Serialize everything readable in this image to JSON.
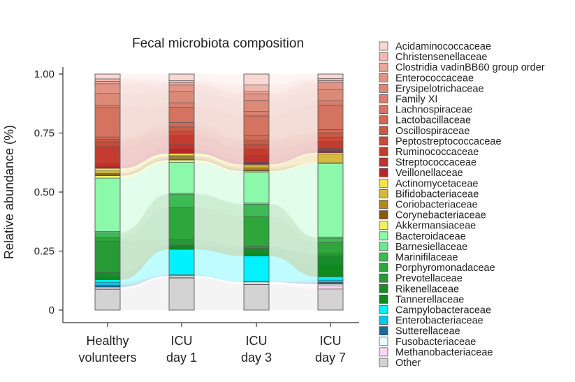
{
  "chart_data": {
    "type": "stacked_bar_alluvial",
    "title": "Fecal microbiota composition",
    "xlabel": "",
    "ylabel": "Relative abundance (%)",
    "ylim": [
      0,
      1
    ],
    "yticks": [
      0,
      0.25,
      0.5,
      0.75,
      1.0
    ],
    "ytick_labels": [
      "0",
      "0.25",
      "0.50",
      "0.75",
      "1.00"
    ],
    "categories": [
      "Healthy\nvolunteers",
      "ICU\nday 1",
      "ICU\nday 3",
      "ICU\nday 7"
    ],
    "legend_position": "right",
    "series": [
      {
        "name": "Other",
        "color": "#d3d3d3",
        "values": [
          0.085,
          0.145,
          0.115,
          0.095
        ]
      },
      {
        "name": "Methanobacteriaceae",
        "color": "#f8d8f4",
        "values": [
          0.005,
          0.002,
          0.002,
          0.015
        ]
      },
      {
        "name": "Fusobacteriaceae",
        "color": "#e6fdfd",
        "values": [
          0.005,
          0.008,
          0.01,
          0.007
        ]
      },
      {
        "name": "Sutterellaceae",
        "color": "#1a6b9a",
        "values": [
          0.008,
          0.0,
          0.0,
          0.008
        ]
      },
      {
        "name": "Enterobacteriaceae",
        "color": "#00c8e6",
        "values": [
          0.012,
          0.005,
          0.003,
          0.01
        ]
      },
      {
        "name": "Campylobacteraceae",
        "color": "#00f2ff",
        "values": [
          0.01,
          0.115,
          0.115,
          0.015
        ]
      },
      {
        "name": "Tannerellaceae",
        "color": "#0e8a1e",
        "values": [
          0.01,
          0.01,
          0.01,
          0.05
        ]
      },
      {
        "name": "Rikenellaceae",
        "color": "#178c2a",
        "values": [
          0.02,
          0.01,
          0.025,
          0.045
        ]
      },
      {
        "name": "Prevotellaceae",
        "color": "#279a36",
        "values": [
          0.13,
          0.025,
          0.01,
          0.01
        ]
      },
      {
        "name": "Porphyromonadaceae",
        "color": "#2ea63c",
        "values": [
          0.015,
          0.145,
          0.135,
          0.05
        ]
      },
      {
        "name": "Marinifilaceae",
        "color": "#3dba54",
        "values": [
          0.02,
          0.06,
          0.055,
          0.02
        ]
      },
      {
        "name": "Barnesiellaceae",
        "color": "#6ee68e",
        "values": [
          0.005,
          0.005,
          0.005,
          0.005
        ]
      },
      {
        "name": "Bacteroidaceae",
        "color": "#8cf8aa",
        "values": [
          0.22,
          0.14,
          0.14,
          0.33
        ]
      },
      {
        "name": "Akkermansiaceae",
        "color": "#f0f060",
        "values": [
          0.01,
          0.01,
          0.005,
          0.005
        ]
      },
      {
        "name": "Corynebacteriaceae",
        "color": "#8a5a0c",
        "values": [
          0.005,
          0.005,
          0.005,
          0.0
        ]
      },
      {
        "name": "Coriobacteriaceae",
        "color": "#b08a1e",
        "values": [
          0.005,
          0.01,
          0.01,
          0.0
        ]
      },
      {
        "name": "Bifidobacteriaceae",
        "color": "#d6b83a",
        "values": [
          0.01,
          0.005,
          0.01,
          0.04
        ]
      },
      {
        "name": "Actinomycetaceae",
        "color": "#f4e64a",
        "values": [
          0.01,
          0.01,
          0.005,
          0.005
        ]
      },
      {
        "name": "Veillonellaceae",
        "color": "#b8242a",
        "values": [
          0.01,
          0.02,
          0.01,
          0.01
        ]
      },
      {
        "name": "Streptococcaceae",
        "color": "#c0322c",
        "values": [
          0.01,
          0.02,
          0.03,
          0.01
        ]
      },
      {
        "name": "Ruminococcaceae",
        "color": "#c43c30",
        "values": [
          0.07,
          0.04,
          0.03,
          0.03
        ]
      },
      {
        "name": "Peptostreptococcaceae",
        "color": "#c84a38",
        "values": [
          0.02,
          0.02,
          0.02,
          0.02
        ]
      },
      {
        "name": "Oscillospiraceae",
        "color": "#c85a44",
        "values": [
          0.01,
          0.02,
          0.02,
          0.02
        ]
      },
      {
        "name": "Lactobacillaceae",
        "color": "#cf6a56",
        "values": [
          0.01,
          0.02,
          0.02,
          0.015
        ]
      },
      {
        "name": "Lachnospiraceae",
        "color": "#d4735f",
        "values": [
          0.12,
          0.07,
          0.09,
          0.11
        ]
      },
      {
        "name": "Family XI",
        "color": "#d87e6c",
        "values": [
          0.01,
          0.02,
          0.02,
          0.02
        ]
      },
      {
        "name": "Erysipelotrichaceae",
        "color": "#dc8a78",
        "values": [
          0.05,
          0.05,
          0.05,
          0.05
        ]
      },
      {
        "name": "Enterococcaceae",
        "color": "#e29484",
        "values": [
          0.04,
          0.03,
          0.03,
          0.03
        ]
      },
      {
        "name": "Clostridia vadinBB60 group order",
        "color": "#eca69a",
        "values": [
          0.01,
          0.01,
          0.01,
          0.01
        ]
      },
      {
        "name": "Christensenellaceae",
        "color": "#f2b8ae",
        "values": [
          0.01,
          0.01,
          0.03,
          0.01
        ]
      },
      {
        "name": "Acidaminococcaceae",
        "color": "#f8d8d2",
        "values": [
          0.02,
          0.03,
          0.05,
          0.02
        ]
      }
    ]
  }
}
